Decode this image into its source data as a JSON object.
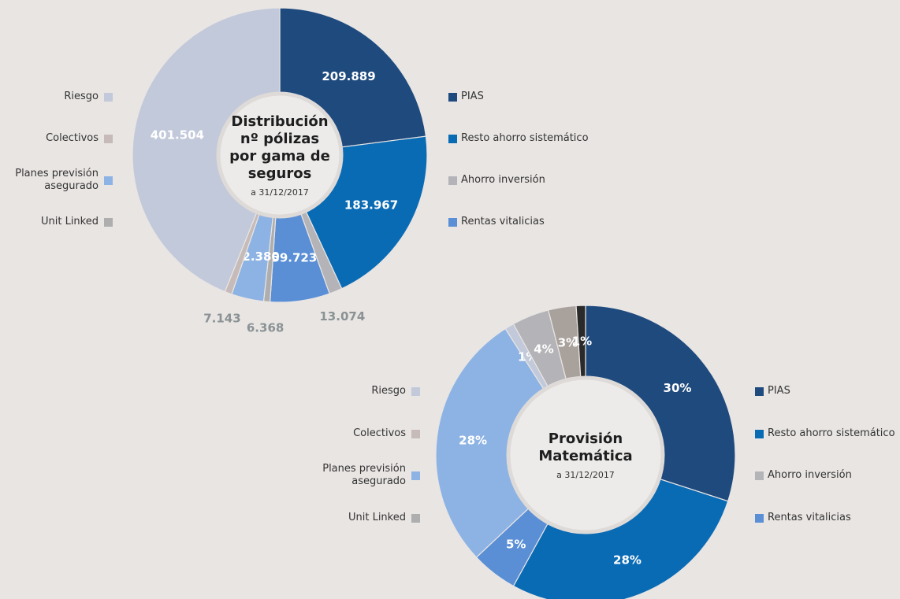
{
  "chart_data": [
    {
      "type": "donut",
      "title": "Distribución nº pólizas por gama de seguros",
      "subtitle": "a 31/12/2017",
      "categories": [
        "PIAS",
        "Resto ahorro sistemático",
        "Ahorro inversión",
        "Rentas vitalicias",
        "Unit Linked",
        "Planes previsión asegurado",
        "Colectivos",
        "Riesgo"
      ],
      "values": [
        209889,
        183967,
        13074,
        59723,
        6368,
        32380,
        7143,
        401504
      ],
      "value_labels": [
        "209.889",
        "183.967",
        "13.074",
        "59.723",
        "6.368",
        "32.380",
        "7.143",
        "401.504"
      ],
      "colors": [
        "#1f4a7e",
        "#0a6bb5",
        "#b4b4b8",
        "#5a8fd6",
        "#aeaeae",
        "#8db3e4",
        "#c6bbb8",
        "#c2c9da"
      ],
      "value_label_colors": [
        "#ffffff",
        "#ffffff",
        "#8a9294",
        "#ffffff",
        "#8a9294",
        "#ffffff",
        "#8a9294",
        "#ffffff"
      ],
      "legend_left": [
        {
          "name": "Riesgo",
          "color": "#c2c9da"
        },
        {
          "name": "Colectivos",
          "color": "#c6bbb8"
        },
        {
          "name": "Planes previsión asegurado",
          "color": "#8db3e4"
        },
        {
          "name": "Unit Linked",
          "color": "#aeaeae"
        }
      ],
      "legend_right": [
        {
          "name": "PIAS",
          "color": "#1f4a7e"
        },
        {
          "name": "Resto ahorro sistemático",
          "color": "#0a6bb5"
        },
        {
          "name": "Ahorro inversión",
          "color": "#b4b4b8"
        },
        {
          "name": "Rentas vitalicias",
          "color": "#5a8fd6"
        }
      ]
    },
    {
      "type": "donut",
      "title": "Provisión Matemática",
      "subtitle": "a 31/12/2017",
      "categories": [
        "PIAS",
        "Resto ahorro sistemático",
        "Rentas vitalicias",
        "Planes previsión asegurado",
        "Riesgo",
        "Ahorro inversión",
        "Colectivos",
        null
      ],
      "values": [
        30,
        28,
        5,
        28,
        1,
        4,
        3,
        1
      ],
      "colors": [
        "#1f4a7e",
        "#0a6bb5",
        "#5a8fd6",
        "#8db3e4",
        "#c2c9da",
        "#b4b4b8",
        "#a9a19c",
        "#2a2a2a"
      ],
      "value_label_colors": [
        "#ffffff",
        "#ffffff",
        "#ffffff",
        "#ffffff",
        "#ffffff",
        "#ffffff",
        "#ffffff",
        "#ffffff"
      ],
      "value_labels": [
        "30%",
        "28%",
        "5%",
        "28%",
        "1%",
        "4%",
        "3%",
        "1%"
      ],
      "legend_left": [
        {
          "name": "Riesgo",
          "color": "#c2c9da"
        },
        {
          "name": "Colectivos",
          "color": "#c6bbb8"
        },
        {
          "name": "Planes previsión asegurado",
          "color": "#8db3e4"
        },
        {
          "name": "Unit Linked",
          "color": "#aeaeae"
        }
      ],
      "legend_right": [
        {
          "name": "PIAS",
          "color": "#1f4a7e"
        },
        {
          "name": "Resto ahorro sistemático",
          "color": "#0a6bb5"
        },
        {
          "name": "Ahorro inversión",
          "color": "#b4b4b8"
        },
        {
          "name": "Rentas vitalicias",
          "color": "#5a8fd6"
        }
      ]
    }
  ]
}
